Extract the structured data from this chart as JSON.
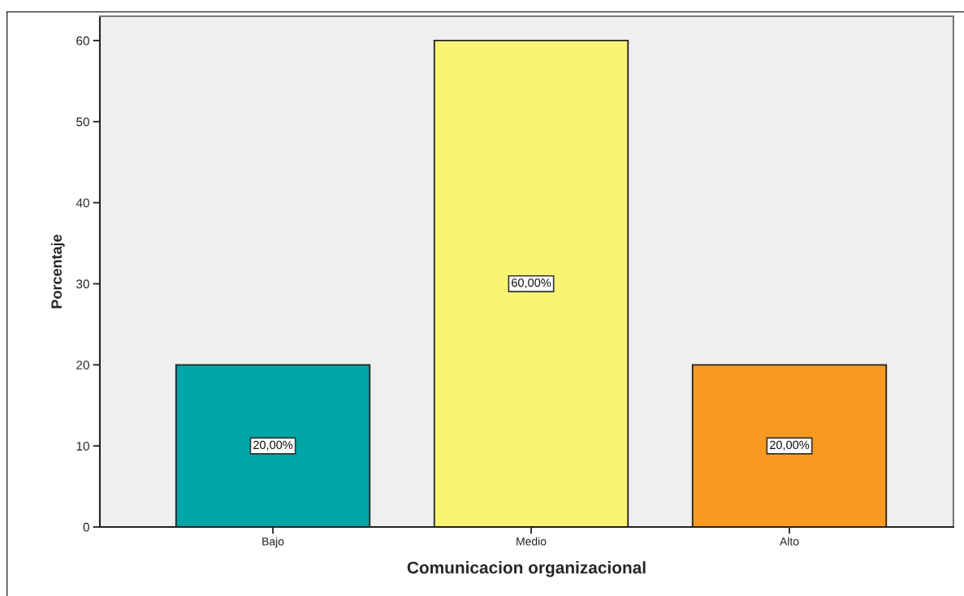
{
  "chart_data": {
    "type": "bar",
    "xlabel": "Comunicacion organizacional",
    "ylabel": "Porcentaje",
    "categories": [
      "Bajo",
      "Medio",
      "Alto"
    ],
    "values": [
      20,
      60,
      20
    ],
    "colors": [
      "#00a6a6",
      "#f9f472",
      "#f89a20"
    ],
    "ylim": [
      0,
      63
    ],
    "yticks": [
      0,
      10,
      20,
      30,
      40,
      50,
      60
    ],
    "value_labels": [
      "20,00%",
      "60,00%",
      "20,00%"
    ]
  }
}
